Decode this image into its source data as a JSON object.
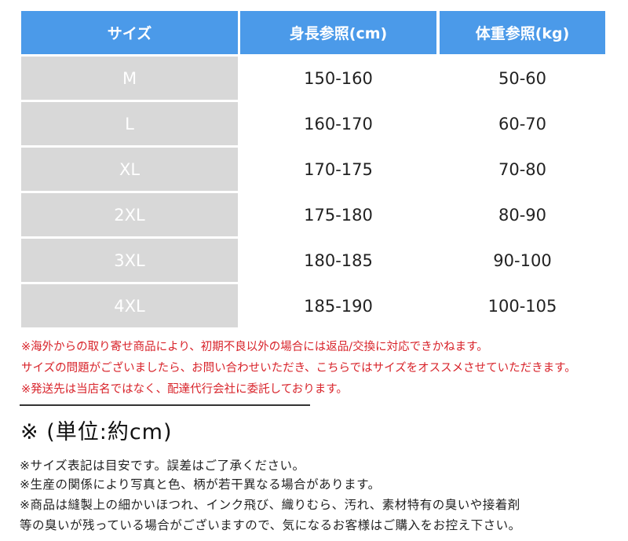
{
  "table": {
    "headers": [
      "サイズ",
      "身長参照(cm)",
      "体重参照(kg)"
    ],
    "rows": [
      {
        "size": "M",
        "height": "150-160",
        "weight": "50-60"
      },
      {
        "size": "L",
        "height": "160-170",
        "weight": "60-70"
      },
      {
        "size": "XL",
        "height": "170-175",
        "weight": "70-80"
      },
      {
        "size": "2XL",
        "height": "175-180",
        "weight": "80-90"
      },
      {
        "size": "3XL",
        "height": "180-185",
        "weight": "90-100"
      },
      {
        "size": "4XL",
        "height": "185-190",
        "weight": "100-105"
      }
    ]
  },
  "warnings": [
    "※海外からの取り寄せ商品により、初期不良以外の場合には返品/交換に対応できかねます。",
    "サイズの問題がございましたら、お問い合わせいただき、こちらではサイズをオススメさせていただきます。",
    "※発送先は当店名ではなく、配達代行会社に委託しております。"
  ],
  "unit_label": "※ (単位:約cm)",
  "notes": [
    "※サイズ表記は目安です。誤差はご了承ください。",
    "※生産の関係により写真と色、柄が若干異なる場合があります。",
    "※商品は縫製上の細かいほつれ、インク飛び、織りむら、汚れ、素材特有の臭いや接着剤",
    "等の臭いが残っている場合がございますので、気になるお客様はご購入をお控え下さい。"
  ],
  "colors": {
    "header": "#4b9ae9",
    "size_cell": "#d8d8d8",
    "warning": "#d8232a"
  }
}
